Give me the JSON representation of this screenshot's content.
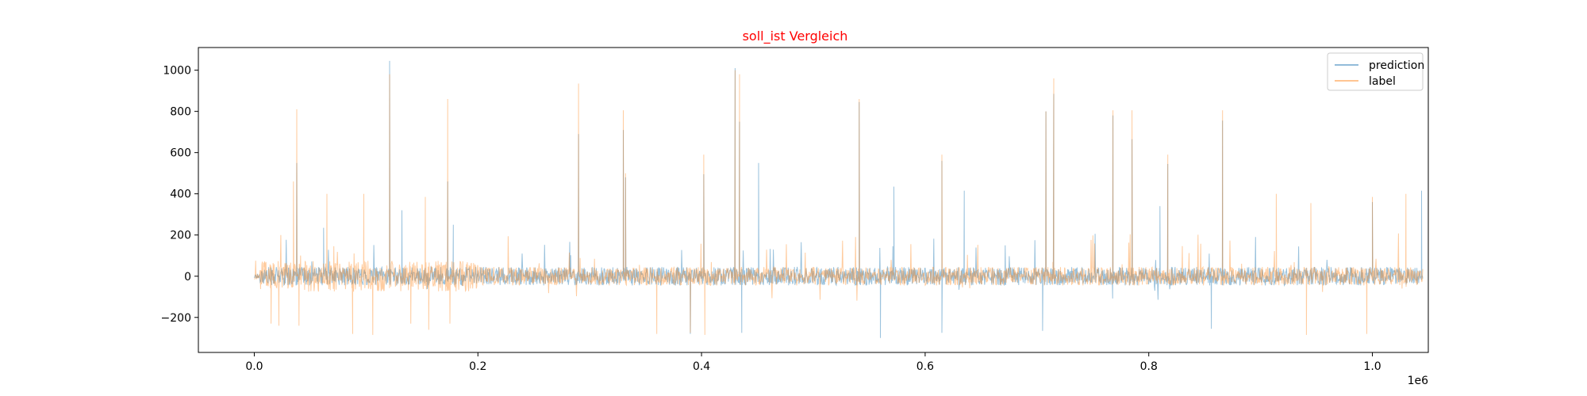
{
  "chart_data": {
    "type": "line",
    "title": "soll_ist Vergleich",
    "xlabel": "",
    "ylabel": "",
    "x_offset_text": "1e6",
    "xlim": [
      -0.05,
      1.05
    ],
    "ylim": [
      -370,
      1110
    ],
    "x_ticks": [
      0.0,
      0.2,
      0.4,
      0.6,
      0.8,
      1.0
    ],
    "x_tick_labels": [
      "0.0",
      "0.2",
      "0.4",
      "0.6",
      "0.8",
      "1.0"
    ],
    "y_ticks": [
      -200,
      0,
      200,
      400,
      600,
      800,
      1000
    ],
    "y_tick_labels": [
      "−200",
      "0",
      "200",
      "400",
      "600",
      "800",
      "1000"
    ],
    "grid": false,
    "legend_position": "top-right",
    "x_range": [
      0.0,
      1.045
    ],
    "series": [
      {
        "name": "prediction",
        "color": "#1f77b4",
        "opacity": 0.45,
        "spikes": [
          [
            0.038,
            550
          ],
          [
            0.062,
            235
          ],
          [
            0.121,
            1045
          ],
          [
            0.132,
            320
          ],
          [
            0.173,
            460
          ],
          [
            0.178,
            250
          ],
          [
            0.29,
            690
          ],
          [
            0.33,
            710
          ],
          [
            0.332,
            480
          ],
          [
            0.402,
            495
          ],
          [
            0.43,
            1010
          ],
          [
            0.434,
            750
          ],
          [
            0.451,
            550
          ],
          [
            0.541,
            845
          ],
          [
            0.572,
            435
          ],
          [
            0.615,
            560
          ],
          [
            0.635,
            415
          ],
          [
            0.708,
            800
          ],
          [
            0.715,
            885
          ],
          [
            0.768,
            780
          ],
          [
            0.785,
            665
          ],
          [
            0.81,
            340
          ],
          [
            0.817,
            545
          ],
          [
            0.866,
            755
          ],
          [
            1.0,
            360
          ],
          [
            1.044,
            415
          ],
          [
            0.39,
            -280
          ],
          [
            0.436,
            -275
          ],
          [
            0.56,
            -300
          ],
          [
            0.615,
            -275
          ],
          [
            0.705,
            -265
          ],
          [
            0.856,
            -255
          ]
        ]
      },
      {
        "name": "label",
        "color": "#ff7f0e",
        "opacity": 0.4,
        "spikes": [
          [
            0.035,
            460
          ],
          [
            0.038,
            810
          ],
          [
            0.065,
            400
          ],
          [
            0.098,
            400
          ],
          [
            0.121,
            980
          ],
          [
            0.153,
            385
          ],
          [
            0.173,
            860
          ],
          [
            0.29,
            935
          ],
          [
            0.33,
            805
          ],
          [
            0.332,
            500
          ],
          [
            0.402,
            590
          ],
          [
            0.43,
            1000
          ],
          [
            0.434,
            980
          ],
          [
            0.541,
            860
          ],
          [
            0.615,
            590
          ],
          [
            0.708,
            800
          ],
          [
            0.715,
            960
          ],
          [
            0.768,
            805
          ],
          [
            0.785,
            805
          ],
          [
            0.817,
            590
          ],
          [
            0.866,
            805
          ],
          [
            0.914,
            400
          ],
          [
            0.945,
            355
          ],
          [
            1.0,
            385
          ],
          [
            1.03,
            400
          ],
          [
            0.015,
            -230
          ],
          [
            0.022,
            -240
          ],
          [
            0.04,
            -240
          ],
          [
            0.088,
            -280
          ],
          [
            0.106,
            -285
          ],
          [
            0.14,
            -230
          ],
          [
            0.156,
            -260
          ],
          [
            0.175,
            -230
          ],
          [
            0.36,
            -280
          ],
          [
            0.39,
            -275
          ],
          [
            0.403,
            -285
          ],
          [
            0.941,
            -285
          ],
          [
            0.995,
            -280
          ]
        ]
      }
    ]
  }
}
